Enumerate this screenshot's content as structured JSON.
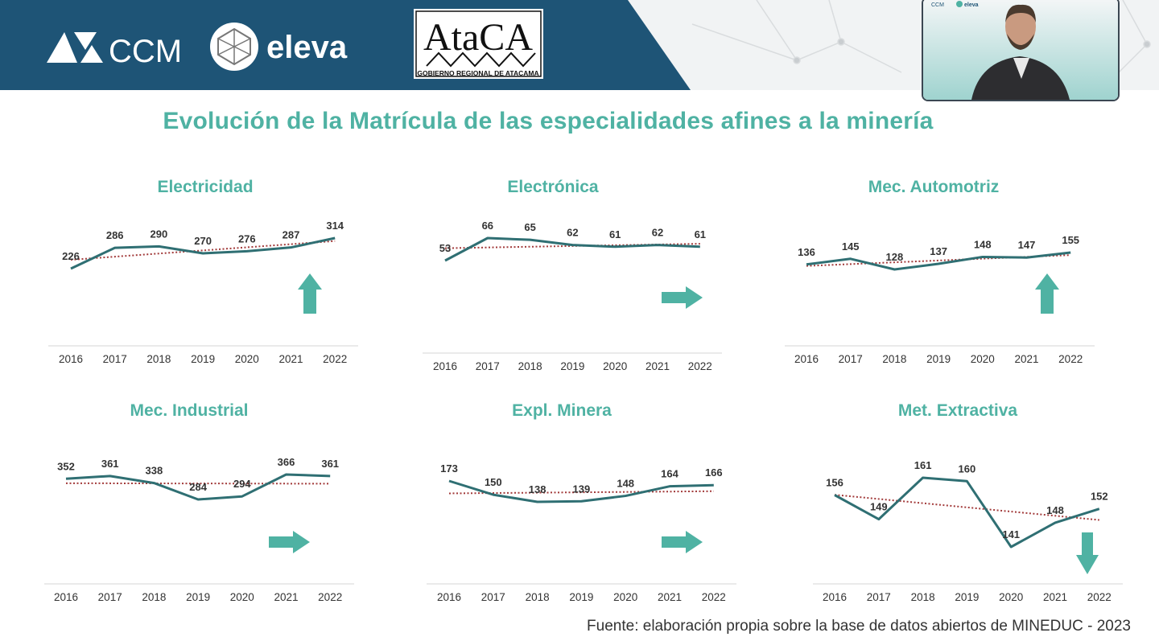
{
  "header": {
    "logo_ccm": "CCM",
    "logo_eleva": "eleva",
    "logo_atacama_text": "AtaCA",
    "logo_atacama_subtitle": "GOBIERNO REGIONAL DE ATACAMA",
    "webcam_logo_ccm": "CCM",
    "webcam_logo_eleva": "eleva"
  },
  "title": "Evolución de la Matrícula de las especialidades afines a la minería",
  "source": "Fuente: elaboración propia sobre la base de datos abiertos de MINEDUC - 2023",
  "colors": {
    "accent": "#4fb2a3",
    "header_bg": "#1e5476",
    "line": "#2f6f73",
    "trend": "#a23a3a"
  },
  "chart_data": [
    {
      "type": "line",
      "title": "Electricidad",
      "x": [
        "2016",
        "2017",
        "2018",
        "2019",
        "2020",
        "2021",
        "2022"
      ],
      "values": [
        226,
        286,
        290,
        270,
        276,
        287,
        314
      ],
      "trendline": "linear",
      "trend_arrow": "up"
    },
    {
      "type": "line",
      "title": "Electrónica",
      "x": [
        "2016",
        "2017",
        "2018",
        "2019",
        "2020",
        "2021",
        "2022"
      ],
      "values": [
        53,
        66,
        65,
        62,
        61,
        62,
        61
      ],
      "trendline": "linear",
      "trend_arrow": "right"
    },
    {
      "type": "line",
      "title": "Mec. Automotriz",
      "x": [
        "2016",
        "2017",
        "2018",
        "2019",
        "2020",
        "2021",
        "2022"
      ],
      "values": [
        136,
        145,
        128,
        137,
        148,
        147,
        155
      ],
      "trendline": "linear",
      "trend_arrow": "up"
    },
    {
      "type": "line",
      "title": "Mec. Industrial",
      "x": [
        "2016",
        "2017",
        "2018",
        "2019",
        "2020",
        "2021",
        "2022"
      ],
      "values": [
        352,
        361,
        338,
        284,
        294,
        366,
        361
      ],
      "trendline": "linear",
      "trend_arrow": "right"
    },
    {
      "type": "line",
      "title": "Expl. Minera",
      "x": [
        "2016",
        "2017",
        "2018",
        "2019",
        "2020",
        "2021",
        "2022"
      ],
      "values": [
        173,
        150,
        138,
        139,
        148,
        164,
        166
      ],
      "trendline": "linear",
      "trend_arrow": "right"
    },
    {
      "type": "line",
      "title": "Met. Extractiva",
      "x": [
        "2016",
        "2017",
        "2018",
        "2019",
        "2020",
        "2021",
        "2022"
      ],
      "values": [
        156,
        149,
        161,
        160,
        141,
        148,
        152
      ],
      "trendline": "linear",
      "trend_arrow": "down"
    }
  ]
}
